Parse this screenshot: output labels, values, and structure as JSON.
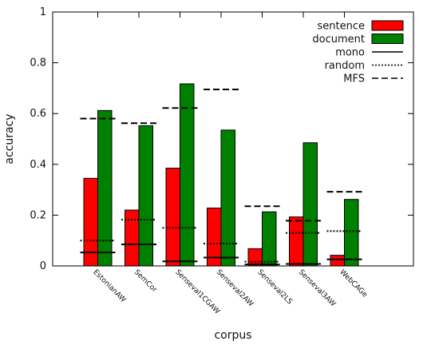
{
  "chart_data": {
    "type": "bar",
    "xlabel": "corpus",
    "ylabel": "accuracy",
    "ylim": [
      0,
      1
    ],
    "yticks": [
      "0",
      "0.2",
      "0.4",
      "0.6",
      "0.8",
      "1"
    ],
    "grid": false,
    "legend_position": "top-right",
    "categories": [
      "EstonianAW",
      "SemCor",
      "Senseval1CGAW",
      "Senseval2AW",
      "Senseval2LS",
      "Senseval3AW",
      "WebCAGe"
    ],
    "series": [
      {
        "name": "sentence",
        "kind": "bar",
        "color": "#ff0000",
        "values": [
          0.345,
          0.22,
          0.385,
          0.228,
          0.068,
          0.193,
          0.042
        ]
      },
      {
        "name": "document",
        "kind": "bar",
        "color": "#008000",
        "values": [
          0.612,
          0.552,
          0.717,
          0.535,
          0.213,
          0.485,
          0.262
        ]
      },
      {
        "name": "mono",
        "kind": "line",
        "style": "solid",
        "values": [
          0.053,
          0.085,
          0.018,
          0.033,
          0.006,
          0.008,
          0.026
        ]
      },
      {
        "name": "random",
        "kind": "line",
        "style": "dotted",
        "values": [
          0.1,
          0.182,
          0.15,
          0.088,
          0.017,
          0.13,
          0.137
        ]
      },
      {
        "name": "MFS",
        "kind": "line",
        "style": "dashed",
        "values": [
          0.58,
          0.562,
          0.622,
          0.695,
          0.235,
          0.178,
          0.292
        ]
      }
    ]
  }
}
